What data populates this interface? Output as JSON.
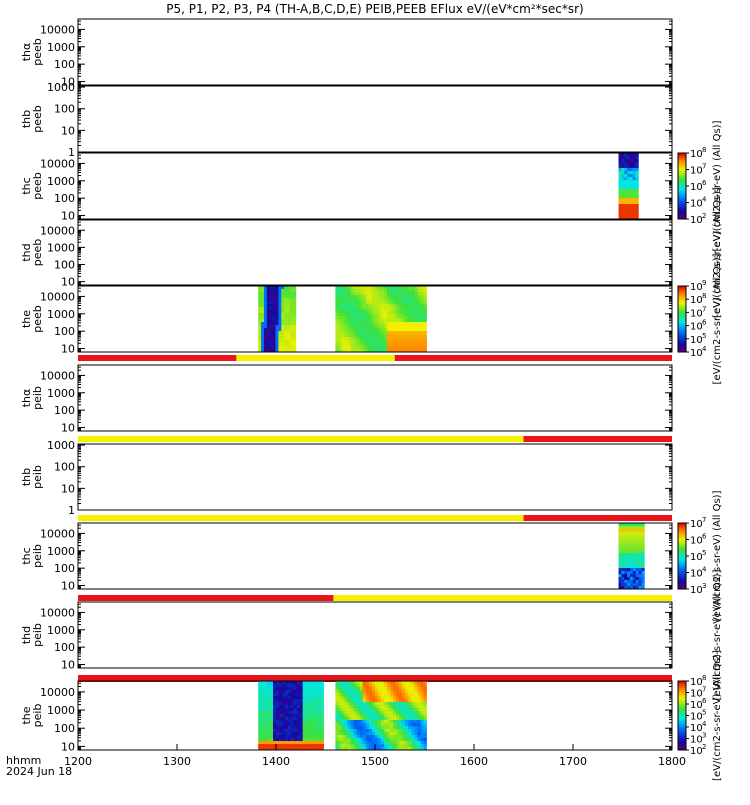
{
  "chart_data": {
    "type": "heatmap",
    "title": "P5, P1, P2, P3, P4 (TH-A,B,C,D,E) PEIB,PEEB EFlux eV/(eV*cm²*sec*sr)",
    "x_axis": {
      "range": [
        1200,
        1800
      ],
      "ticks": [
        "1200",
        "1300",
        "1400",
        "1500",
        "1600",
        "1700",
        "1800"
      ],
      "corner_label": [
        "hhmm",
        "2024 Jun 18"
      ]
    },
    "colors": {
      "red": "#e8141c",
      "yellow": "#f5f200",
      "axis": "#000000"
    },
    "panels": [
      {
        "id": "tha-peeb",
        "ylabel": [
          "thα",
          "peeb"
        ],
        "y_log_range": [
          0.8,
          4.6
        ],
        "y_ticks": [
          "10",
          "100",
          "1000",
          "10000"
        ],
        "data": "none",
        "colorbar": null
      },
      {
        "id": "thb-peeb",
        "ylabel": [
          "thb",
          "peeb"
        ],
        "y_log_range": [
          0,
          3.05
        ],
        "y_ticks": [
          "1",
          "10",
          "100",
          "1000"
        ],
        "data": "none",
        "colorbar": null
      },
      {
        "id": "thc-peeb",
        "ylabel": [
          "thc",
          "peeb"
        ],
        "y_log_range": [
          0.8,
          4.6
        ],
        "y_ticks": [
          "10",
          "100",
          "1000",
          "10000"
        ],
        "data": "spectrogram",
        "blocks": [
          {
            "x0": 1746,
            "x1": 1766,
            "profile": "thc_peeb"
          }
        ],
        "colorbar": {
          "exps": [
            "2",
            "4",
            "6",
            "7",
            "8"
          ],
          "label": "[eV/(cm2-s-sr-eV) (All Qs)]"
        }
      },
      {
        "id": "thd-peeb",
        "ylabel": [
          "thd",
          "peeb"
        ],
        "y_log_range": [
          0.8,
          4.6
        ],
        "y_ticks": [
          "10",
          "100",
          "1000",
          "10000"
        ],
        "data": "none",
        "colorbar_label_only": "[eV/(cm2-s-sr-eV) (All Qs)]"
      },
      {
        "id": "the-peeb",
        "ylabel": [
          "the",
          "peeb"
        ],
        "y_log_range": [
          0.8,
          4.6
        ],
        "y_ticks": [
          "10",
          "100",
          "1000",
          "10000"
        ],
        "data": "spectrogram",
        "blocks": [
          {
            "x0": 1382,
            "x1": 1420,
            "profile": "the_peeb_a"
          },
          {
            "x0": 1460,
            "x1": 1552,
            "profile": "the_peeb_b"
          }
        ],
        "colorbar": {
          "exps": [
            "4",
            "5",
            "6",
            "7",
            "8",
            "9"
          ],
          "label": "[eV/(cm2-s-sr-eV) (All Qs)]"
        },
        "mode_bar": [
          {
            "x0": 1200,
            "x1": 1360,
            "color": "red"
          },
          {
            "x0": 1360,
            "x1": 1520,
            "color": "yellow"
          },
          {
            "x0": 1520,
            "x1": 1800,
            "color": "red"
          }
        ]
      },
      {
        "id": "tha-peib",
        "ylabel": [
          "thα",
          "peib"
        ],
        "y_log_range": [
          0.8,
          4.6
        ],
        "y_ticks": [
          "10",
          "100",
          "1000",
          "10000"
        ],
        "data": "none",
        "colorbar": null,
        "mode_bar": [
          {
            "x0": 1200,
            "x1": 1650,
            "color": "yellow"
          },
          {
            "x0": 1650,
            "x1": 1800,
            "color": "red"
          }
        ]
      },
      {
        "id": "thb-peib",
        "ylabel": [
          "thb",
          "peib"
        ],
        "y_log_range": [
          0,
          3.05
        ],
        "y_ticks": [
          "1",
          "10",
          "100",
          "1000"
        ],
        "data": "none",
        "colorbar": null,
        "mode_bar": [
          {
            "x0": 1200,
            "x1": 1650,
            "color": "yellow"
          },
          {
            "x0": 1650,
            "x1": 1800,
            "color": "red"
          }
        ]
      },
      {
        "id": "thc-peib",
        "ylabel": [
          "thc",
          "peib"
        ],
        "y_log_range": [
          0.8,
          4.6
        ],
        "y_ticks": [
          "10",
          "100",
          "1000",
          "10000"
        ],
        "data": "spectrogram",
        "blocks": [
          {
            "x0": 1746,
            "x1": 1772,
            "profile": "thc_peib"
          }
        ],
        "colorbar": {
          "exps": [
            "3",
            "4",
            "5",
            "6",
            "7"
          ],
          "label": "[eV/(cm2-s-sr-eV) (All Qs)]"
        },
        "mode_bar": [
          {
            "x0": 1200,
            "x1": 1458,
            "color": "red"
          },
          {
            "x0": 1458,
            "x1": 1800,
            "color": "yellow"
          }
        ]
      },
      {
        "id": "thd-peib",
        "ylabel": [
          "thd",
          "peib"
        ],
        "y_log_range": [
          0.8,
          4.6
        ],
        "y_ticks": [
          "10",
          "100",
          "1000",
          "10000"
        ],
        "data": "none",
        "colorbar_label_only": "[eV/(cm2-s-sr-eV) (All Qs)]",
        "mode_bar": [
          {
            "x0": 1200,
            "x1": 1800,
            "color": "red"
          }
        ]
      },
      {
        "id": "the-peib",
        "ylabel": [
          "the",
          "peib"
        ],
        "y_log_range": [
          0.8,
          4.6
        ],
        "y_ticks": [
          "10",
          "100",
          "1000",
          "10000"
        ],
        "data": "spectrogram",
        "blocks": [
          {
            "x0": 1382,
            "x1": 1448,
            "profile": "the_peib_a"
          },
          {
            "x0": 1460,
            "x1": 1552,
            "profile": "the_peib_b"
          }
        ],
        "colorbar": {
          "exps": [
            "2",
            "3",
            "4",
            "5",
            "6",
            "7",
            "8"
          ],
          "label": "[eV/(cm2-s-sr-eV) (All Qs)]"
        }
      }
    ]
  }
}
